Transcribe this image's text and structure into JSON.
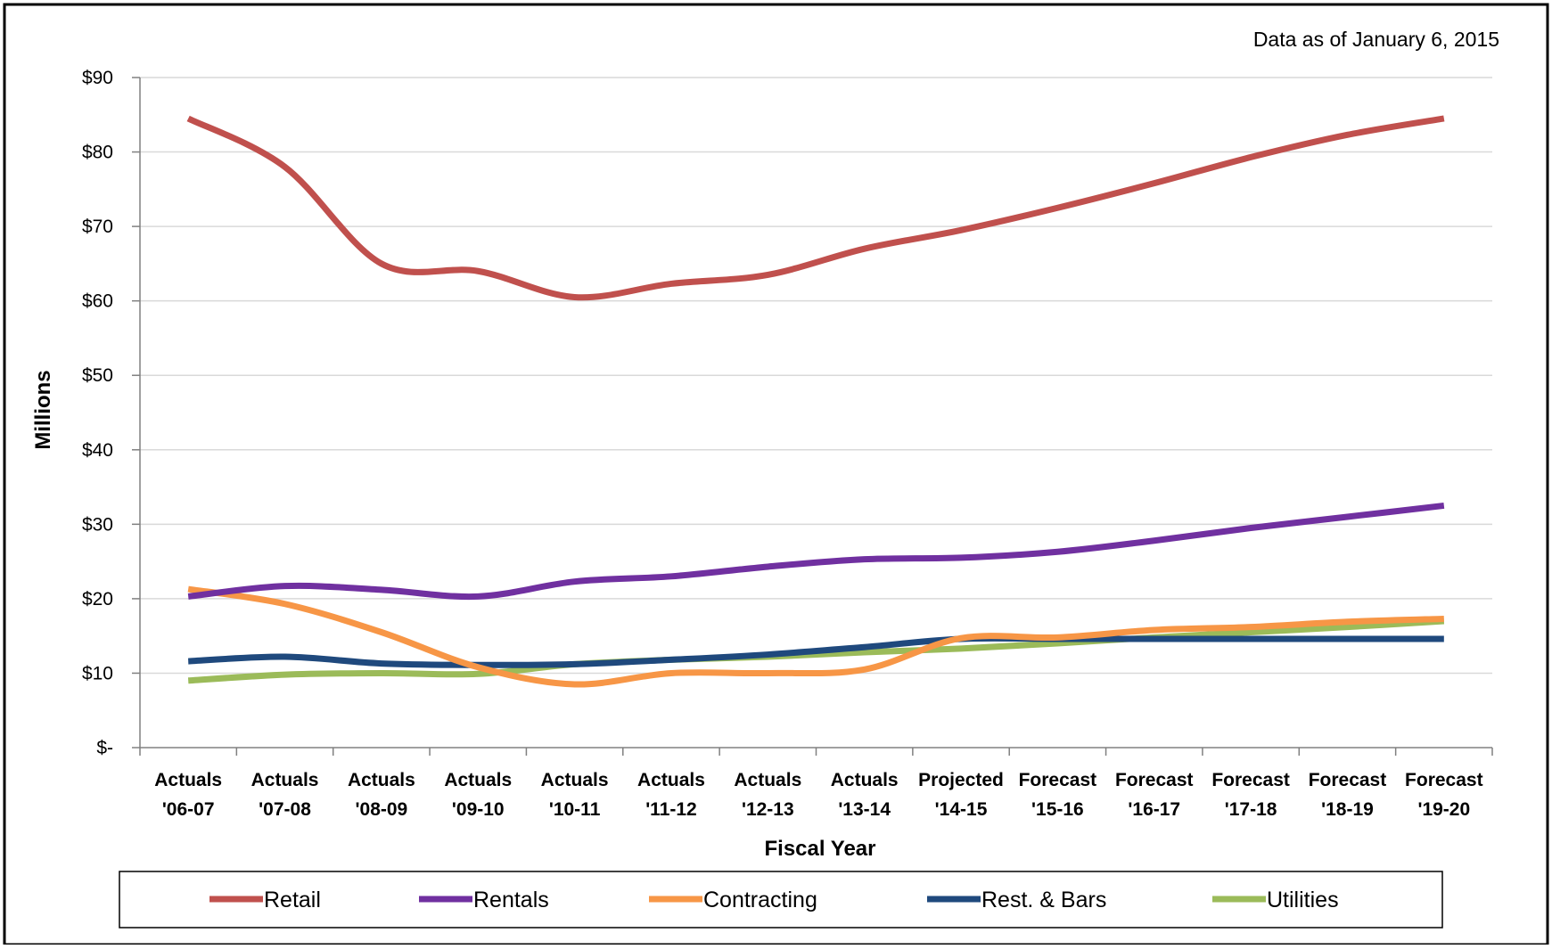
{
  "note": "Data as of January 6, 2015",
  "chart_data": {
    "type": "line",
    "xlabel": "Fiscal Year",
    "ylabel": "Millions",
    "ylim": [
      0,
      90
    ],
    "ytick_values": [
      0,
      10,
      20,
      30,
      40,
      50,
      60,
      70,
      80,
      90
    ],
    "ytick_labels": [
      "$-",
      "$10",
      "$20",
      "$30",
      "$40",
      "$50",
      "$60",
      "$70",
      "$80",
      "$90"
    ],
    "categories": [
      {
        "line1": "Actuals",
        "line2": "'06-07"
      },
      {
        "line1": "Actuals",
        "line2": "'07-08"
      },
      {
        "line1": "Actuals",
        "line2": "'08-09"
      },
      {
        "line1": "Actuals",
        "line2": "'09-10"
      },
      {
        "line1": "Actuals",
        "line2": "'10-11"
      },
      {
        "line1": "Actuals",
        "line2": "'11-12"
      },
      {
        "line1": "Actuals",
        "line2": "'12-13"
      },
      {
        "line1": "Actuals",
        "line2": "'13-14"
      },
      {
        "line1": "Projected",
        "line2": "'14-15"
      },
      {
        "line1": "Forecast",
        "line2": "'15-16"
      },
      {
        "line1": "Forecast",
        "line2": "'16-17"
      },
      {
        "line1": "Forecast",
        "line2": "'17-18"
      },
      {
        "line1": "Forecast",
        "line2": "'18-19"
      },
      {
        "line1": "Forecast",
        "line2": "'19-20"
      }
    ],
    "grid": true,
    "legend_position": "bottom",
    "series": [
      {
        "name": "Retail",
        "color": "#c0504d",
        "values": [
          84.5,
          78,
          65,
          64,
          60.5,
          62.3,
          63.5,
          67,
          69.5,
          72.5,
          75.8,
          79.3,
          82.3,
          84.5
        ]
      },
      {
        "name": "Rentals",
        "color": "#7030a0",
        "values": [
          20.3,
          21.7,
          21.2,
          20.3,
          22.3,
          23,
          24.3,
          25.3,
          25.5,
          26.3,
          27.8,
          29.5,
          31,
          32.5
        ]
      },
      {
        "name": "Contracting",
        "color": "#f79646",
        "values": [
          21.3,
          19.3,
          15.5,
          10.8,
          8.5,
          10,
          10,
          10.5,
          14.7,
          14.8,
          15.8,
          16.2,
          16.9,
          17.3
        ]
      },
      {
        "name": "Rest. & Bars",
        "color": "#1f497d",
        "values": [
          11.6,
          12.2,
          11.3,
          11.1,
          11.2,
          11.8,
          12.5,
          13.5,
          14.6,
          14.6,
          14.6,
          14.6,
          14.6,
          14.6
        ]
      },
      {
        "name": "Utilities",
        "color": "#9bbb59",
        "values": [
          9,
          9.8,
          10,
          9.9,
          11.2,
          11.8,
          12.2,
          12.8,
          13.3,
          14,
          14.8,
          15.5,
          16.2,
          17
        ]
      }
    ]
  }
}
